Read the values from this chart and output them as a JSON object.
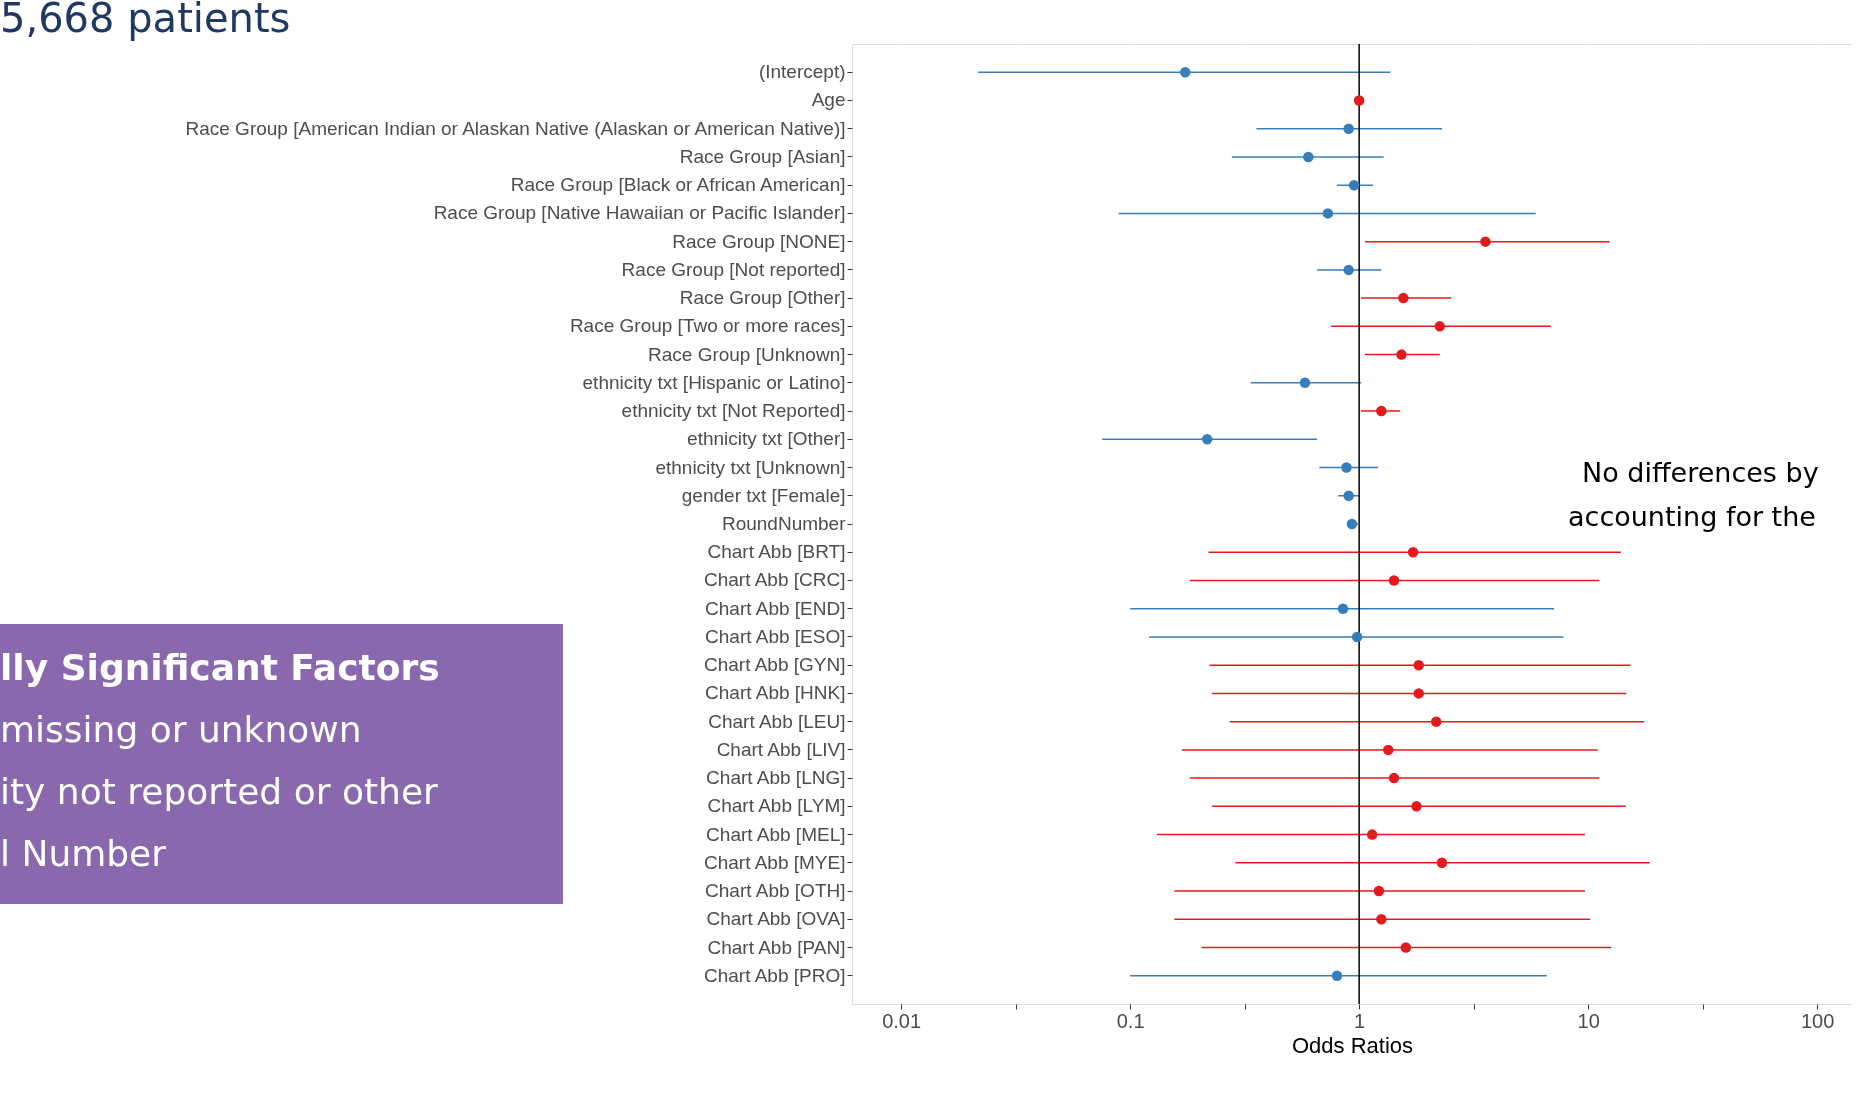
{
  "chart_data": {
    "type": "scatter",
    "orientation": "horizontal",
    "title": "5,668 patients",
    "xlabel": "Odds Ratios",
    "log": "x",
    "grid": true,
    "marker": "circle",
    "legend": false,
    "categories": [
      "(Intercept)",
      "Age",
      "Race Group [American Indian or Alaskan Native (Alaskan or American Native)]",
      "Race Group [Asian]",
      "Race Group [Black or African American]",
      "Race Group [Native Hawaiian or Pacific Islander]",
      "Race Group [NONE]",
      "Race Group [Not reported]",
      "Race Group [Other]",
      "Race Group [Two or more races]",
      "Race Group [Unknown]",
      "ethnicity txt [Hispanic or Latino]",
      "ethnicity txt [Not Reported]",
      "ethnicity txt [Other]",
      "ethnicity txt [Unknown]",
      "gender txt [Female]",
      "RoundNumber",
      "Chart Abb [BRT]",
      "Chart Abb [CRC]",
      "Chart Abb [END]",
      "Chart Abb [ESO]",
      "Chart Abb [GYN]",
      "Chart Abb [HNK]",
      "Chart Abb [LEU]",
      "Chart Abb [LIV]",
      "Chart Abb [LNG]",
      "Chart Abb [LYM]",
      "Chart Abb [MEL]",
      "Chart Abb [MYE]",
      "Chart Abb [OTH]",
      "Chart Abb [OVA]",
      "Chart Abb [PAN]",
      "Chart Abb [PRO]"
    ],
    "values": [
      0.174,
      1.0,
      0.9,
      0.6,
      0.95,
      0.73,
      3.56,
      0.9,
      1.56,
      2.25,
      1.53,
      0.58,
      1.25,
      0.217,
      0.88,
      0.9,
      0.93,
      1.72,
      1.42,
      0.85,
      0.98,
      1.82,
      1.82,
      2.17,
      1.34,
      1.42,
      1.78,
      1.14,
      2.3,
      1.22,
      1.25,
      1.6,
      0.8
    ],
    "errors": [
      [
        0.0217,
        1.37
      ],
      null,
      [
        0.356,
        2.3
      ],
      [
        0.278,
        1.28
      ],
      [
        0.8,
        1.15
      ],
      [
        0.089,
        5.9
      ],
      [
        1.06,
        12.4
      ],
      [
        0.655,
        1.25
      ],
      [
        1.02,
        2.53
      ],
      [
        0.755,
        6.87
      ],
      [
        1.06,
        2.25
      ],
      [
        0.336,
        1.02
      ],
      [
        1.02,
        1.51
      ],
      [
        0.0755,
        0.655
      ],
      [
        0.67,
        1.21
      ],
      [
        0.81,
        1.0
      ],
      [
        0.89,
        0.99
      ],
      [
        0.22,
        13.9
      ],
      [
        0.182,
        11.2
      ],
      [
        0.1,
        7.1
      ],
      [
        0.121,
        7.8
      ],
      [
        0.222,
        15.3
      ],
      [
        0.228,
        14.7
      ],
      [
        0.272,
        17.6
      ],
      [
        0.168,
        11.0
      ],
      [
        0.182,
        11.2
      ],
      [
        0.228,
        14.6
      ],
      [
        0.131,
        9.7
      ],
      [
        0.288,
        18.6
      ],
      [
        0.156,
        9.7
      ],
      [
        0.156,
        10.2
      ],
      [
        0.205,
        12.6
      ],
      [
        0.1,
        6.6
      ]
    ],
    "colors": [
      "#377eb8",
      "#e41a1c",
      "#377eb8",
      "#377eb8",
      "#377eb8",
      "#377eb8",
      "#e41a1c",
      "#377eb8",
      "#e41a1c",
      "#e41a1c",
      "#e41a1c",
      "#377eb8",
      "#e41a1c",
      "#377eb8",
      "#377eb8",
      "#377eb8",
      "#377eb8",
      "#e41a1c",
      "#e41a1c",
      "#377eb8",
      "#377eb8",
      "#e41a1c",
      "#e41a1c",
      "#e41a1c",
      "#e41a1c",
      "#e41a1c",
      "#e41a1c",
      "#e41a1c",
      "#e41a1c",
      "#e41a1c",
      "#e41a1c",
      "#e41a1c",
      "#377eb8"
    ],
    "xlim": [
      0.0061,
      142
    ],
    "xticks": [
      0.01,
      {
        "value": 0.0316,
        "label": null
      },
      0.1,
      {
        "value": 0.316,
        "label": null
      },
      1,
      {
        "value": 3.16,
        "label": null
      },
      10,
      {
        "value": 31.6,
        "label": null
      },
      100
    ],
    "ref_lines": [
      {
        "axis": "x",
        "value": 1,
        "color": "#000000"
      }
    ],
    "annotations": [
      "lly Significant Factors",
      "missing or unknown",
      "ity not reported or other",
      "l Number",
      "No differences by",
      "accounting for the"
    ]
  }
}
